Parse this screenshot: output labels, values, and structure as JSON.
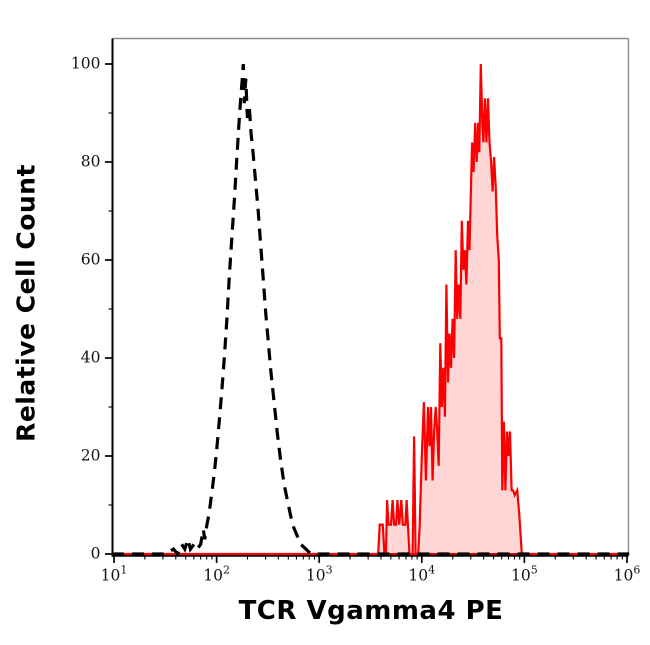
{
  "chart_data": {
    "type": "line",
    "subtype": "flow-cytometry-histogram-overlay",
    "title": "",
    "xlabel": "TCR Vgamma4 PE",
    "ylabel": "Relative Cell Count",
    "x_scale": "log10",
    "x_domain_log": [
      0.98,
      6.02
    ],
    "ylim": [
      0,
      105
    ],
    "grid": false,
    "legend": "none",
    "x_ticks": [
      {
        "base": "10",
        "exponent": "1",
        "log": 1
      },
      {
        "base": "10",
        "exponent": "2",
        "log": 2
      },
      {
        "base": "10",
        "exponent": "3",
        "log": 3
      },
      {
        "base": "10",
        "exponent": "4",
        "log": 4
      },
      {
        "base": "10",
        "exponent": "5",
        "log": 5
      },
      {
        "base": "10",
        "exponent": "6",
        "log": 6
      }
    ],
    "x_minor_tick_mantissas": [
      2,
      3,
      4,
      5,
      6,
      7,
      8,
      9
    ],
    "y_ticks": [
      0,
      20,
      40,
      60,
      80,
      100
    ],
    "y_minor_ticks": [
      10,
      30,
      50,
      70,
      90
    ],
    "frame": {
      "left_bottom_color": "#000000",
      "top_right_color": "#8a8a8a"
    },
    "baseline_color": "#c00000",
    "series": [
      {
        "name": "tcr-vgamma4-pe-stained",
        "line_style": "solid",
        "color": "#fb0000",
        "fill": "rgba(251,0,0,0.16)",
        "stroke_width": 2.2,
        "points_logx_y": [
          [
            0.98,
            0
          ],
          [
            3.575,
            0
          ],
          [
            3.59,
            6
          ],
          [
            3.62,
            6
          ],
          [
            3.635,
            0
          ],
          [
            3.65,
            0
          ],
          [
            3.662,
            11
          ],
          [
            3.675,
            6
          ],
          [
            3.7,
            6
          ],
          [
            3.715,
            11
          ],
          [
            3.73,
            6
          ],
          [
            3.75,
            6
          ],
          [
            3.762,
            11
          ],
          [
            3.78,
            6
          ],
          [
            3.8,
            11
          ],
          [
            3.815,
            6
          ],
          [
            3.84,
            6
          ],
          [
            3.852,
            11
          ],
          [
            3.865,
            6
          ],
          [
            3.88,
            0
          ],
          [
            3.91,
            0
          ],
          [
            3.925,
            24
          ],
          [
            3.94,
            0
          ],
          [
            3.965,
            0
          ],
          [
            3.98,
            6
          ],
          [
            4.0,
            20
          ],
          [
            4.02,
            31
          ],
          [
            4.04,
            15
          ],
          [
            4.06,
            30
          ],
          [
            4.075,
            22
          ],
          [
            4.09,
            30
          ],
          [
            4.105,
            15
          ],
          [
            4.12,
            25
          ],
          [
            4.135,
            30
          ],
          [
            4.15,
            25
          ],
          [
            4.165,
            18
          ],
          [
            4.18,
            43
          ],
          [
            4.195,
            30
          ],
          [
            4.21,
            38
          ],
          [
            4.225,
            28
          ],
          [
            4.24,
            55
          ],
          [
            4.255,
            35
          ],
          [
            4.27,
            45
          ],
          [
            4.285,
            38
          ],
          [
            4.3,
            48
          ],
          [
            4.315,
            40
          ],
          [
            4.33,
            62
          ],
          [
            4.345,
            48
          ],
          [
            4.36,
            55
          ],
          [
            4.375,
            48
          ],
          [
            4.39,
            68
          ],
          [
            4.405,
            58
          ],
          [
            4.42,
            62
          ],
          [
            4.435,
            55
          ],
          [
            4.45,
            68
          ],
          [
            4.465,
            62
          ],
          [
            4.48,
            75
          ],
          [
            4.49,
            84
          ],
          [
            4.505,
            78
          ],
          [
            4.52,
            88
          ],
          [
            4.535,
            80
          ],
          [
            4.55,
            88
          ],
          [
            4.56,
            82
          ],
          [
            4.575,
            100
          ],
          [
            4.59,
            88
          ],
          [
            4.6,
            84
          ],
          [
            4.615,
            93
          ],
          [
            4.63,
            84
          ],
          [
            4.645,
            93
          ],
          [
            4.66,
            84
          ],
          [
            4.675,
            80
          ],
          [
            4.69,
            74
          ],
          [
            4.705,
            81
          ],
          [
            4.72,
            75
          ],
          [
            4.735,
            65
          ],
          [
            4.75,
            60
          ],
          [
            4.76,
            44
          ],
          [
            4.775,
            44
          ],
          [
            4.785,
            13
          ],
          [
            4.8,
            27
          ],
          [
            4.815,
            13
          ],
          [
            4.83,
            25
          ],
          [
            4.845,
            20
          ],
          [
            4.86,
            25
          ],
          [
            4.875,
            13
          ],
          [
            4.89,
            13
          ],
          [
            4.905,
            12
          ],
          [
            4.93,
            13
          ],
          [
            4.95,
            8
          ],
          [
            4.975,
            0
          ],
          [
            6.02,
            0
          ]
        ]
      },
      {
        "name": "isotype-control-unstained",
        "line_style": "dashed",
        "color": "#000000",
        "fill": "none",
        "stroke_width": 3.2,
        "dash_array": "12 8",
        "points_logx_y": [
          [
            0.98,
            0
          ],
          [
            1.5,
            0
          ],
          [
            1.58,
            1
          ],
          [
            1.62,
            0
          ],
          [
            1.66,
            2
          ],
          [
            1.69,
            1
          ],
          [
            1.72,
            3
          ],
          [
            1.745,
            1
          ],
          [
            1.78,
            2
          ],
          [
            1.81,
            1
          ],
          [
            1.845,
            2
          ],
          [
            1.87,
            5
          ],
          [
            1.885,
            3
          ],
          [
            1.905,
            6
          ],
          [
            1.925,
            8
          ],
          [
            1.95,
            12
          ],
          [
            1.975,
            16
          ],
          [
            2.0,
            21
          ],
          [
            2.025,
            27
          ],
          [
            2.05,
            33
          ],
          [
            2.075,
            40
          ],
          [
            2.1,
            48
          ],
          [
            2.125,
            57
          ],
          [
            2.15,
            65
          ],
          [
            2.175,
            73
          ],
          [
            2.195,
            80
          ],
          [
            2.215,
            87
          ],
          [
            2.235,
            93
          ],
          [
            2.25,
            97
          ],
          [
            2.26,
            100
          ],
          [
            2.27,
            92
          ],
          [
            2.285,
            97
          ],
          [
            2.3,
            89
          ],
          [
            2.32,
            91
          ],
          [
            2.335,
            86
          ],
          [
            2.355,
            82
          ],
          [
            2.38,
            76
          ],
          [
            2.405,
            70
          ],
          [
            2.43,
            63
          ],
          [
            2.455,
            56
          ],
          [
            2.48,
            49
          ],
          [
            2.505,
            43
          ],
          [
            2.53,
            37
          ],
          [
            2.56,
            31
          ],
          [
            2.59,
            25
          ],
          [
            2.625,
            19
          ],
          [
            2.66,
            14
          ],
          [
            2.7,
            10
          ],
          [
            2.74,
            6
          ],
          [
            2.78,
            4
          ],
          [
            2.82,
            2
          ],
          [
            2.87,
            1
          ],
          [
            2.92,
            0
          ],
          [
            6.02,
            0
          ]
        ]
      }
    ]
  }
}
